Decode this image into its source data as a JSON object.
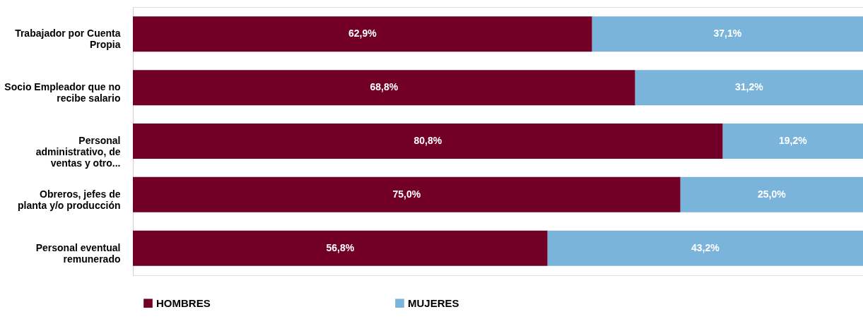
{
  "chart_data": {
    "type": "bar",
    "orientation": "horizontal",
    "stacked": true,
    "categories": [
      "Trabajador por Cuenta Propia",
      "Socio Empleador que no recibe salario",
      "Personal administrativo, de ventas  y otro...",
      "Obreros, jefes de planta y/o producción",
      "Personal eventual remunerado"
    ],
    "series": [
      {
        "name": "HOMBRES",
        "color": "#720026",
        "values": [
          62.9,
          68.8,
          80.8,
          75.0,
          56.8
        ],
        "value_labels": [
          "62,9%",
          "68,8%",
          "80,8%",
          "75,0%",
          "56,8%"
        ]
      },
      {
        "name": "MUJERES",
        "color": "#7ab4db",
        "values": [
          37.1,
          31.2,
          19.2,
          25.0,
          43.2
        ],
        "value_labels": [
          "37,1%",
          "31,2%",
          "19,2%",
          "25,0%",
          "43,2%"
        ]
      }
    ],
    "xlim": [
      0,
      100
    ],
    "tick_labels": "y",
    "legend": "bottom"
  }
}
